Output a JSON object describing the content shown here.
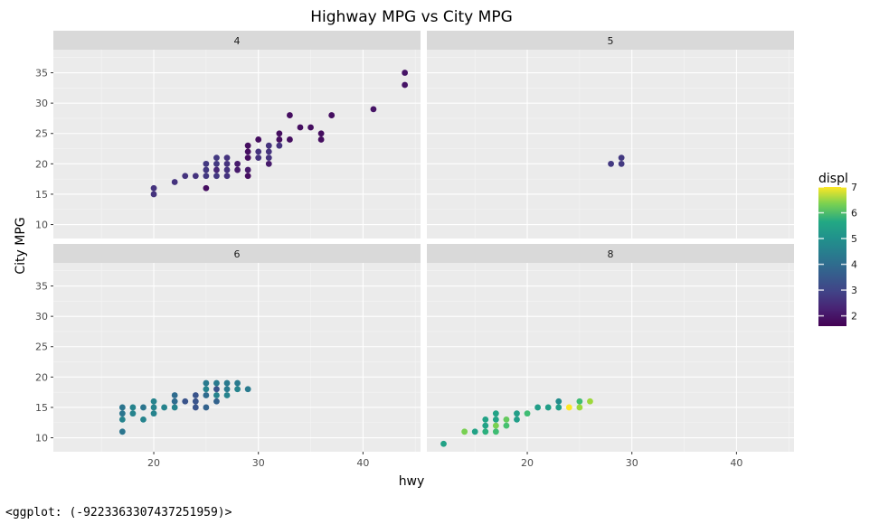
{
  "chart_data": {
    "type": "scatter",
    "title": "Highway MPG vs City MPG",
    "xlabel": "hwy",
    "ylabel": "City MPG",
    "facet_var": "cyl",
    "xlim": [
      10.4,
      45.5
    ],
    "ylim": [
      7.7,
      38.8
    ],
    "xticks": [
      20,
      30,
      40
    ],
    "yticks": [
      10,
      15,
      20,
      25,
      30,
      35
    ],
    "grid": true,
    "legend": {
      "title": "displ",
      "type": "colorbar",
      "ticks": [
        2,
        3,
        4,
        5,
        6,
        7
      ],
      "range": [
        1.6,
        7.0
      ],
      "position": "right"
    },
    "panels": [
      {
        "label": "4",
        "points": [
          {
            "x": 20,
            "y": 16,
            "d": 2.4
          },
          {
            "x": 20,
            "y": 15,
            "d": 2.4
          },
          {
            "x": 22,
            "y": 17,
            "d": 2.4
          },
          {
            "x": 23,
            "y": 18,
            "d": 2.4
          },
          {
            "x": 24,
            "y": 18,
            "d": 2.4
          },
          {
            "x": 25,
            "y": 20,
            "d": 2.5
          },
          {
            "x": 25,
            "y": 19,
            "d": 2.5
          },
          {
            "x": 25,
            "y": 18,
            "d": 2.5
          },
          {
            "x": 25,
            "y": 16,
            "d": 1.8
          },
          {
            "x": 26,
            "y": 21,
            "d": 2.5
          },
          {
            "x": 26,
            "y": 20,
            "d": 2.5
          },
          {
            "x": 26,
            "y": 19,
            "d": 2.2
          },
          {
            "x": 26,
            "y": 18,
            "d": 2.5
          },
          {
            "x": 27,
            "y": 21,
            "d": 2.4
          },
          {
            "x": 27,
            "y": 20,
            "d": 2.4
          },
          {
            "x": 27,
            "y": 19,
            "d": 2.4
          },
          {
            "x": 27,
            "y": 18,
            "d": 2.4
          },
          {
            "x": 28,
            "y": 20,
            "d": 2.0
          },
          {
            "x": 28,
            "y": 19,
            "d": 2.0
          },
          {
            "x": 29,
            "y": 23,
            "d": 1.8
          },
          {
            "x": 29,
            "y": 22,
            "d": 1.8
          },
          {
            "x": 29,
            "y": 21,
            "d": 1.8
          },
          {
            "x": 29,
            "y": 19,
            "d": 2.0
          },
          {
            "x": 29,
            "y": 18,
            "d": 1.8
          },
          {
            "x": 30,
            "y": 24,
            "d": 1.8
          },
          {
            "x": 30,
            "y": 22,
            "d": 2.4
          },
          {
            "x": 30,
            "y": 21,
            "d": 2.4
          },
          {
            "x": 31,
            "y": 23,
            "d": 2.4
          },
          {
            "x": 31,
            "y": 22,
            "d": 2.4
          },
          {
            "x": 31,
            "y": 21,
            "d": 2.4
          },
          {
            "x": 31,
            "y": 20,
            "d": 2.0
          },
          {
            "x": 32,
            "y": 25,
            "d": 1.8
          },
          {
            "x": 32,
            "y": 24,
            "d": 1.8
          },
          {
            "x": 32,
            "y": 23,
            "d": 2.4
          },
          {
            "x": 33,
            "y": 28,
            "d": 1.8
          },
          {
            "x": 33,
            "y": 24,
            "d": 1.8
          },
          {
            "x": 34,
            "y": 26,
            "d": 1.8
          },
          {
            "x": 35,
            "y": 26,
            "d": 1.8
          },
          {
            "x": 36,
            "y": 25,
            "d": 1.8
          },
          {
            "x": 36,
            "y": 24,
            "d": 1.8
          },
          {
            "x": 37,
            "y": 28,
            "d": 1.8
          },
          {
            "x": 41,
            "y": 29,
            "d": 1.9
          },
          {
            "x": 44,
            "y": 35,
            "d": 1.9
          },
          {
            "x": 44,
            "y": 33,
            "d": 1.9
          }
        ]
      },
      {
        "label": "5",
        "points": [
          {
            "x": 28,
            "y": 20,
            "d": 2.5
          },
          {
            "x": 29,
            "y": 21,
            "d": 2.5
          },
          {
            "x": 29,
            "y": 20,
            "d": 2.5
          }
        ]
      },
      {
        "label": "6",
        "points": [
          {
            "x": 17,
            "y": 15,
            "d": 3.7
          },
          {
            "x": 17,
            "y": 14,
            "d": 3.7
          },
          {
            "x": 17,
            "y": 13,
            "d": 4.0
          },
          {
            "x": 17,
            "y": 11,
            "d": 3.7
          },
          {
            "x": 18,
            "y": 15,
            "d": 4.0
          },
          {
            "x": 18,
            "y": 14,
            "d": 4.0
          },
          {
            "x": 19,
            "y": 15,
            "d": 3.7
          },
          {
            "x": 19,
            "y": 13,
            "d": 4.0
          },
          {
            "x": 20,
            "y": 16,
            "d": 4.0
          },
          {
            "x": 20,
            "y": 15,
            "d": 4.0
          },
          {
            "x": 20,
            "y": 14,
            "d": 4.0
          },
          {
            "x": 21,
            "y": 15,
            "d": 4.0
          },
          {
            "x": 22,
            "y": 17,
            "d": 3.5
          },
          {
            "x": 22,
            "y": 16,
            "d": 3.5
          },
          {
            "x": 22,
            "y": 15,
            "d": 4.0
          },
          {
            "x": 23,
            "y": 16,
            "d": 3.0
          },
          {
            "x": 24,
            "y": 17,
            "d": 3.0
          },
          {
            "x": 24,
            "y": 16,
            "d": 3.0
          },
          {
            "x": 24,
            "y": 15,
            "d": 3.0
          },
          {
            "x": 25,
            "y": 19,
            "d": 3.8
          },
          {
            "x": 25,
            "y": 18,
            "d": 4.0
          },
          {
            "x": 25,
            "y": 17,
            "d": 3.5
          },
          {
            "x": 25,
            "y": 15,
            "d": 3.3
          },
          {
            "x": 26,
            "y": 19,
            "d": 3.8
          },
          {
            "x": 26,
            "y": 18,
            "d": 3.0
          },
          {
            "x": 26,
            "y": 17,
            "d": 4.0
          },
          {
            "x": 26,
            "y": 16,
            "d": 3.3
          },
          {
            "x": 27,
            "y": 19,
            "d": 3.8
          },
          {
            "x": 27,
            "y": 18,
            "d": 3.8
          },
          {
            "x": 27,
            "y": 17,
            "d": 4.0
          },
          {
            "x": 28,
            "y": 19,
            "d": 3.8
          },
          {
            "x": 28,
            "y": 18,
            "d": 4.0
          },
          {
            "x": 29,
            "y": 18,
            "d": 3.8
          }
        ]
      },
      {
        "label": "8",
        "points": [
          {
            "x": 12,
            "y": 9,
            "d": 4.7
          },
          {
            "x": 14,
            "y": 11,
            "d": 5.9
          },
          {
            "x": 15,
            "y": 11,
            "d": 4.7
          },
          {
            "x": 16,
            "y": 13,
            "d": 4.7
          },
          {
            "x": 16,
            "y": 12,
            "d": 4.7
          },
          {
            "x": 16,
            "y": 11,
            "d": 5.0
          },
          {
            "x": 17,
            "y": 14,
            "d": 4.7
          },
          {
            "x": 17,
            "y": 13,
            "d": 4.7
          },
          {
            "x": 17,
            "y": 12,
            "d": 5.9
          },
          {
            "x": 17,
            "y": 11,
            "d": 5.3
          },
          {
            "x": 18,
            "y": 13,
            "d": 5.7
          },
          {
            "x": 18,
            "y": 12,
            "d": 5.4
          },
          {
            "x": 19,
            "y": 14,
            "d": 4.6
          },
          {
            "x": 19,
            "y": 13,
            "d": 4.6
          },
          {
            "x": 20,
            "y": 14,
            "d": 5.3
          },
          {
            "x": 21,
            "y": 15,
            "d": 4.6
          },
          {
            "x": 22,
            "y": 15,
            "d": 4.6
          },
          {
            "x": 23,
            "y": 16,
            "d": 4.2
          },
          {
            "x": 23,
            "y": 15,
            "d": 4.6
          },
          {
            "x": 24,
            "y": 15,
            "d": 7.0
          },
          {
            "x": 25,
            "y": 16,
            "d": 5.3
          },
          {
            "x": 25,
            "y": 15,
            "d": 6.2
          },
          {
            "x": 26,
            "y": 16,
            "d": 6.2
          }
        ]
      }
    ]
  },
  "footer": {
    "text": "<ggplot: (-9223363307437251959)>"
  },
  "colors": {
    "panel_bg": "#EBEBEB",
    "strip_bg": "#D9D9D9",
    "grid_major": "#FFFFFF",
    "grid_minor": "#F5F5F5",
    "axis_text": "#4D4D4D"
  }
}
